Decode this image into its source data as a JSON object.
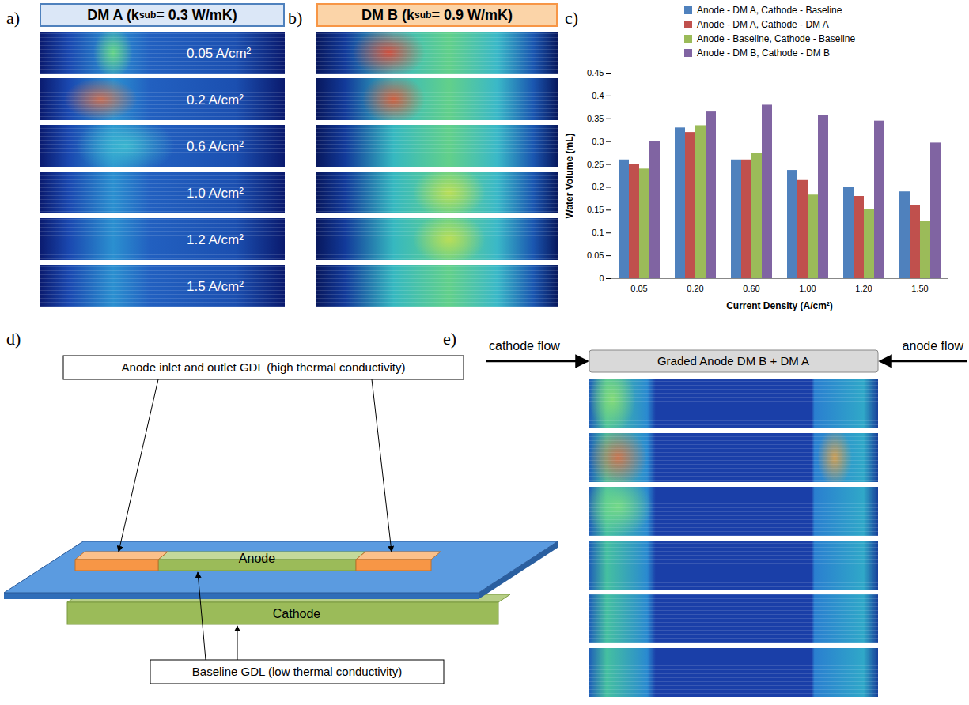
{
  "panels": {
    "a": {
      "letter": "a)",
      "title_segments": [
        "DM A (k",
        "sub",
        " = 0.3 W/mK)"
      ],
      "strip_labels": [
        "0.05 A/cm²",
        "0.2 A/cm²",
        "0.6 A/cm²",
        "1.0 A/cm²",
        "1.2 A/cm²",
        "1.5 A/cm²"
      ]
    },
    "b": {
      "letter": "b)",
      "title_segments": [
        "DM B (k",
        "sub",
        " = 0.9 W/mK)"
      ]
    },
    "c": {
      "letter": "c)"
    },
    "d": {
      "letter": "d)",
      "top_callout": "Anode inlet and outlet GDL (high thermal conductivity)",
      "anode": "Anode",
      "cathode": "Cathode",
      "bottom_callout": "Baseline GDL (low thermal conductivity)"
    },
    "e": {
      "letter": "e)",
      "left_arrow": "cathode flow",
      "right_arrow": "anode flow",
      "box": "Graded Anode DM B + DM A"
    }
  },
  "chart_data": {
    "type": "bar",
    "xlabel": "Current Density (A/cm²)",
    "ylabel": "Water Volume (mL)",
    "categories": [
      "0.05",
      "0.20",
      "0.60",
      "1.00",
      "1.20",
      "1.50"
    ],
    "series": [
      {
        "name": "Anode - DM A, Cathode - Baseline",
        "color": "#4F81BD",
        "values": [
          0.26,
          0.33,
          0.26,
          0.237,
          0.2,
          0.19
        ]
      },
      {
        "name": "Anode - DM A, Cathode - DM A",
        "color": "#C0504D",
        "values": [
          0.25,
          0.32,
          0.26,
          0.215,
          0.18,
          0.16
        ]
      },
      {
        "name": "Anode - Baseline, Cathode - Baseline",
        "color": "#9BBB59",
        "values": [
          0.24,
          0.335,
          0.275,
          0.183,
          0.152,
          0.125
        ]
      },
      {
        "name": "Anode - DM B, Cathode - DM B",
        "color": "#8064A2",
        "values": [
          0.3,
          0.365,
          0.38,
          0.358,
          0.345,
          0.297
        ]
      }
    ],
    "ylim": [
      0,
      0.45
    ],
    "yticks": [
      0,
      0.05,
      0.1,
      0.15,
      0.2,
      0.25,
      0.3,
      0.35,
      0.4,
      0.45
    ],
    "grid": false,
    "legend": "top"
  }
}
